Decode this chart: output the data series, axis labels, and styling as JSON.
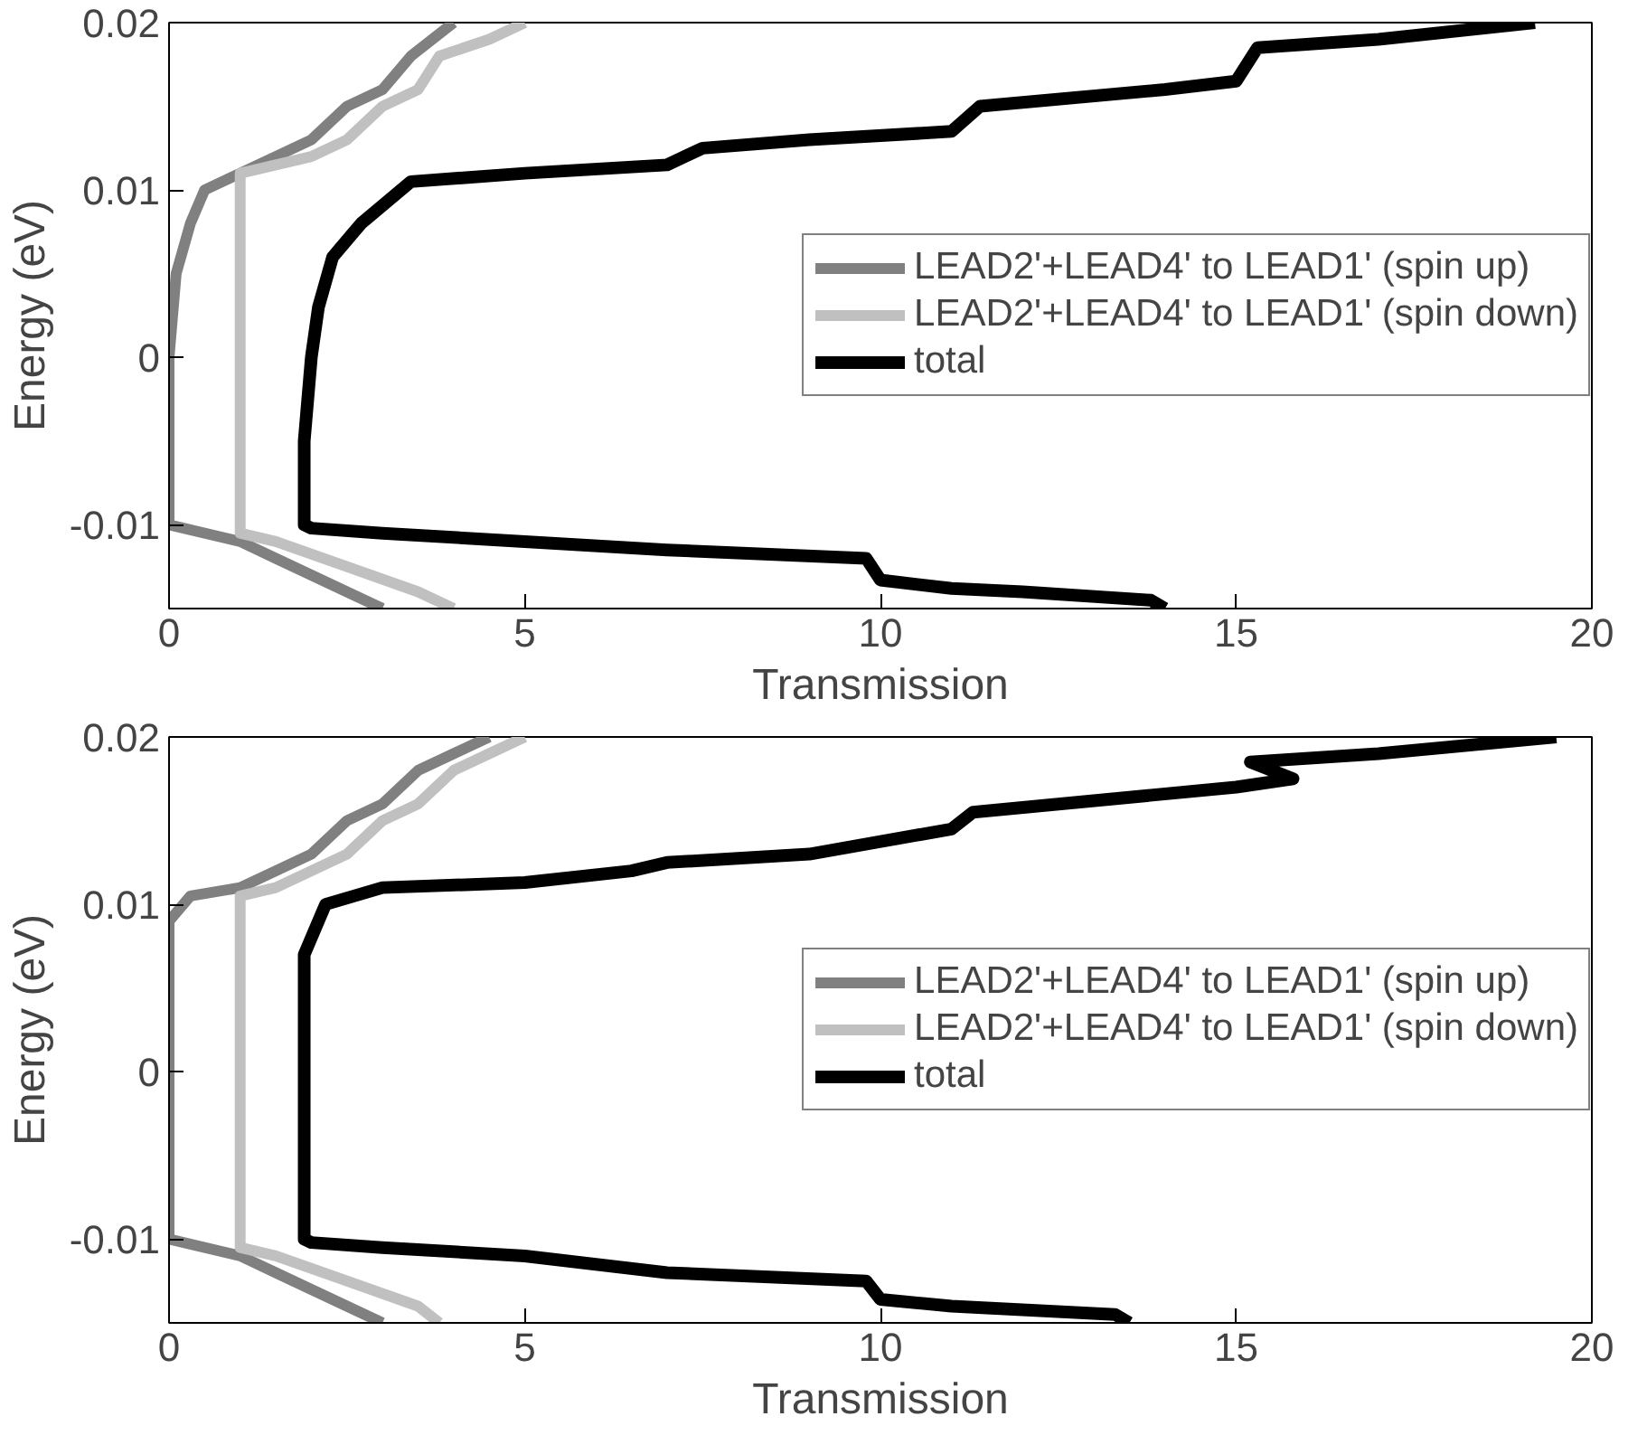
{
  "chart_data": [
    {
      "type": "line",
      "xlabel": "Transmission",
      "ylabel": "Energy (eV)",
      "xlim": [
        0,
        20
      ],
      "ylim": [
        -0.015,
        0.02
      ],
      "xticks": [
        0,
        5,
        10,
        15,
        20
      ],
      "yticks": [
        -0.01,
        0,
        0.01,
        0.02
      ],
      "grid": false,
      "legend": "right",
      "series": [
        {
          "name": "LEAD2'+LEAD4' to LEAD1' (spin up)",
          "color": "#808080",
          "x": [
            3,
            2.5,
            2,
            1.5,
            1,
            0,
            0,
            0.1,
            0.3,
            0.5,
            1,
            1.5,
            2,
            2.5,
            3,
            3.4,
            3.7,
            4
          ],
          "values": [
            -0.015,
            -0.014,
            -0.013,
            -0.012,
            -0.011,
            -0.01,
            0,
            0.005,
            0.008,
            0.01,
            0.011,
            0.012,
            0.013,
            0.015,
            0.016,
            0.018,
            0.019,
            0.02
          ]
        },
        {
          "name": "LEAD2'+LEAD4' to LEAD1' (spin down)",
          "color": "#c0c0c0",
          "x": [
            4,
            3.5,
            2.5,
            1.5,
            1,
            1,
            1.5,
            2,
            2.5,
            3,
            3.5,
            3.8,
            4.5,
            5
          ],
          "values": [
            -0.015,
            -0.014,
            -0.0125,
            -0.011,
            -0.0105,
            0.011,
            0.0115,
            0.012,
            0.013,
            0.015,
            0.016,
            0.018,
            0.019,
            0.02
          ]
        },
        {
          "name": "total",
          "color": "#000000",
          "x": [
            14,
            13.8,
            12,
            11,
            10,
            9.8,
            7,
            5,
            3,
            2,
            1.9,
            1.9,
            2,
            2.1,
            2.3,
            2.7,
            3.4,
            5,
            7,
            7.5,
            9,
            11,
            11.4,
            14,
            15,
            15.3,
            17,
            19.2
          ],
          "values": [
            -0.015,
            -0.0145,
            -0.014,
            -0.0138,
            -0.0133,
            -0.012,
            -0.0115,
            -0.011,
            -0.0105,
            -0.0102,
            -0.01,
            -0.005,
            0,
            0.003,
            0.006,
            0.008,
            0.0105,
            0.011,
            0.0115,
            0.0125,
            0.013,
            0.0135,
            0.015,
            0.016,
            0.0165,
            0.0185,
            0.019,
            0.02
          ]
        }
      ]
    },
    {
      "type": "line",
      "xlabel": "Transmission",
      "ylabel": "Energy (eV)",
      "xlim": [
        0,
        20
      ],
      "ylim": [
        -0.015,
        0.02
      ],
      "xticks": [
        0,
        5,
        10,
        15,
        20
      ],
      "yticks": [
        -0.01,
        0,
        0.01,
        0.02
      ],
      "grid": false,
      "legend": "right",
      "series": [
        {
          "name": "LEAD2'+LEAD4' to LEAD1' (spin up)",
          "color": "#808080",
          "x": [
            3,
            2.5,
            2,
            1.5,
            1,
            0,
            0,
            0.3,
            1,
            1.5,
            2,
            2.5,
            3,
            3.5,
            4,
            4.5
          ],
          "values": [
            -0.015,
            -0.014,
            -0.013,
            -0.012,
            -0.011,
            -0.01,
            0.009,
            0.0105,
            0.011,
            0.012,
            0.013,
            0.015,
            0.016,
            0.018,
            0.019,
            0.02
          ]
        },
        {
          "name": "LEAD2'+LEAD4' to LEAD1' (spin down)",
          "color": "#c0c0c0",
          "x": [
            3.8,
            3.5,
            2.5,
            1.5,
            1,
            1,
            1.5,
            2,
            2.5,
            3,
            3.5,
            4,
            4.5,
            5
          ],
          "values": [
            -0.015,
            -0.014,
            -0.0125,
            -0.011,
            -0.0105,
            0.0105,
            0.011,
            0.012,
            0.013,
            0.015,
            0.016,
            0.018,
            0.019,
            0.02
          ]
        },
        {
          "name": "total",
          "color": "#000000",
          "x": [
            13.5,
            13.3,
            11,
            10,
            9.8,
            7,
            5,
            3,
            2,
            1.9,
            1.9,
            2.2,
            3,
            5,
            6.5,
            7,
            9,
            11,
            11.3,
            15,
            15.8,
            15.2,
            17,
            19.5
          ],
          "values": [
            -0.015,
            -0.0145,
            -0.014,
            -0.0136,
            -0.0125,
            -0.012,
            -0.011,
            -0.0105,
            -0.0102,
            -0.01,
            0.007,
            0.01,
            0.011,
            0.0113,
            0.012,
            0.0125,
            0.013,
            0.0145,
            0.0155,
            0.017,
            0.0175,
            0.0185,
            0.019,
            0.02
          ]
        }
      ]
    }
  ]
}
